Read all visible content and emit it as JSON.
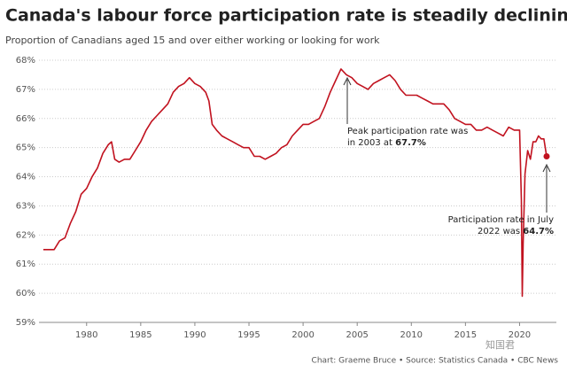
{
  "chart_data": {
    "type": "line",
    "title": "Canada's labour force participation rate is steadily declining",
    "subtitle": "Proportion of Canadians aged 15 and over either working or looking for work",
    "source": "Chart: Graeme Bruce • Source: Statistics Canada • CBC News",
    "watermark": "知国君",
    "x": [
      1976.0,
      1976.5,
      1977.0,
      1977.5,
      1978.0,
      1978.5,
      1979.0,
      1979.5,
      1980.0,
      1980.5,
      1981.0,
      1981.5,
      1982.0,
      1982.3,
      1982.6,
      1983.0,
      1983.5,
      1984.0,
      1984.5,
      1985.0,
      1985.5,
      1986.0,
      1986.5,
      1987.0,
      1987.5,
      1988.0,
      1988.5,
      1989.0,
      1989.5,
      1990.0,
      1990.5,
      1991.0,
      1991.3,
      1991.6,
      1992.0,
      1992.5,
      1993.0,
      1993.5,
      1994.0,
      1994.5,
      1995.0,
      1995.5,
      1996.0,
      1996.5,
      1997.0,
      1997.5,
      1998.0,
      1998.5,
      1999.0,
      1999.5,
      2000.0,
      2000.5,
      2001.0,
      2001.5,
      2002.0,
      2002.5,
      2003.0,
      2003.5,
      2004.0,
      2004.5,
      2005.0,
      2005.5,
      2006.0,
      2006.5,
      2007.0,
      2007.5,
      2008.0,
      2008.5,
      2009.0,
      2009.5,
      2010.0,
      2010.5,
      2011.0,
      2011.5,
      2012.0,
      2012.5,
      2013.0,
      2013.5,
      2014.0,
      2014.5,
      2015.0,
      2015.5,
      2016.0,
      2016.5,
      2017.0,
      2017.5,
      2018.0,
      2018.5,
      2019.0,
      2019.5,
      2020.0,
      2020.17,
      2020.25,
      2020.33,
      2020.5,
      2020.75,
      2021.0,
      2021.25,
      2021.5,
      2021.75,
      2022.0,
      2022.25,
      2022.5
    ],
    "series": [
      {
        "color": "#c1121f",
        "values": [
          61.5,
          61.5,
          61.5,
          61.8,
          61.9,
          62.4,
          62.8,
          63.4,
          63.6,
          64.0,
          64.3,
          64.8,
          65.1,
          65.2,
          64.6,
          64.5,
          64.6,
          64.6,
          64.9,
          65.2,
          65.6,
          65.9,
          66.1,
          66.3,
          66.5,
          66.9,
          67.1,
          67.2,
          67.4,
          67.2,
          67.1,
          66.9,
          66.6,
          65.8,
          65.6,
          65.4,
          65.3,
          65.2,
          65.1,
          65.0,
          65.0,
          64.7,
          64.7,
          64.6,
          64.7,
          64.8,
          65.0,
          65.1,
          65.4,
          65.6,
          65.8,
          65.8,
          65.9,
          66.0,
          66.4,
          66.9,
          67.3,
          67.7,
          67.5,
          67.4,
          67.2,
          67.1,
          67.0,
          67.2,
          67.3,
          67.4,
          67.5,
          67.3,
          67.0,
          66.8,
          66.8,
          66.8,
          66.7,
          66.6,
          66.5,
          66.5,
          66.5,
          66.3,
          66.0,
          65.9,
          65.8,
          65.8,
          65.6,
          65.6,
          65.7,
          65.6,
          65.5,
          65.4,
          65.7,
          65.6,
          65.6,
          63.2,
          59.9,
          61.7,
          64.1,
          64.9,
          64.6,
          65.2,
          65.2,
          65.4,
          65.3,
          65.3,
          64.7
        ]
      }
    ],
    "xlim": [
      1975.6,
      2023.4
    ],
    "xticks": [
      1980,
      1985,
      1990,
      1995,
      2000,
      2005,
      2010,
      2015,
      2020
    ],
    "ylim": [
      59,
      68
    ],
    "yticks": [
      {
        "value": 59,
        "label": "59%"
      },
      {
        "value": 60,
        "label": "60%"
      },
      {
        "value": 61,
        "label": "61%"
      },
      {
        "value": 62,
        "label": "62%"
      },
      {
        "value": 63,
        "label": "63%"
      },
      {
        "value": 64,
        "label": "64%"
      },
      {
        "value": 65,
        "label": "65%"
      },
      {
        "value": 66,
        "label": "66%"
      },
      {
        "value": 67,
        "label": "67%"
      },
      {
        "value": 68,
        "label": "68%"
      }
    ],
    "grid": true,
    "annotations": [
      {
        "lines": [
          "Peak participation rate was",
          "in 2003 at"
        ],
        "bold": "67.7%"
      },
      {
        "lines": [
          "Participation rate in July",
          "2022 was"
        ],
        "bold": "64.7%"
      }
    ]
  }
}
